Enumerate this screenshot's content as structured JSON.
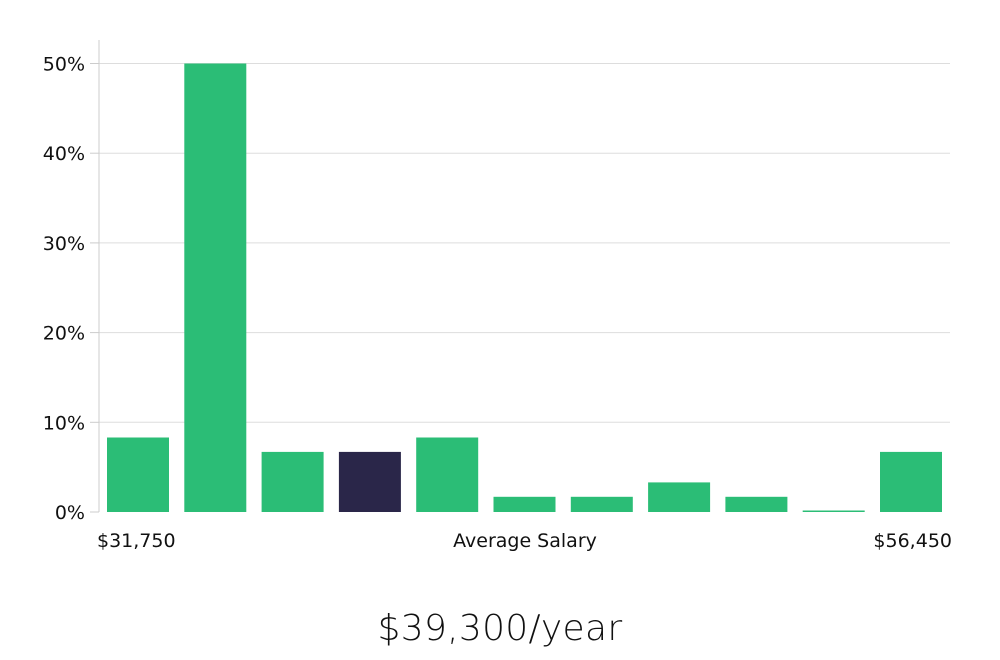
{
  "chart_data": {
    "type": "bar",
    "y_ticks": [
      "0%",
      "10%",
      "20%",
      "30%",
      "40%",
      "50%"
    ],
    "y_tick_values": [
      0,
      10,
      20,
      30,
      40,
      50
    ],
    "ylim": [
      0,
      52.5
    ],
    "grid": true,
    "x_min_label": "$31,750",
    "x_center_label": "Average Salary",
    "x_max_label": "$56,450",
    "values": [
      8.3,
      50.0,
      6.7,
      6.7,
      8.3,
      1.7,
      1.7,
      3.3,
      1.7,
      0.1,
      6.7
    ],
    "highlight_index": 3,
    "colors": {
      "bar": "#2bbd76",
      "highlight": "#2a2649",
      "grid": "#dddddd",
      "axis": "#cccccc"
    }
  },
  "summary": {
    "average_salary": "$39,300/year"
  }
}
